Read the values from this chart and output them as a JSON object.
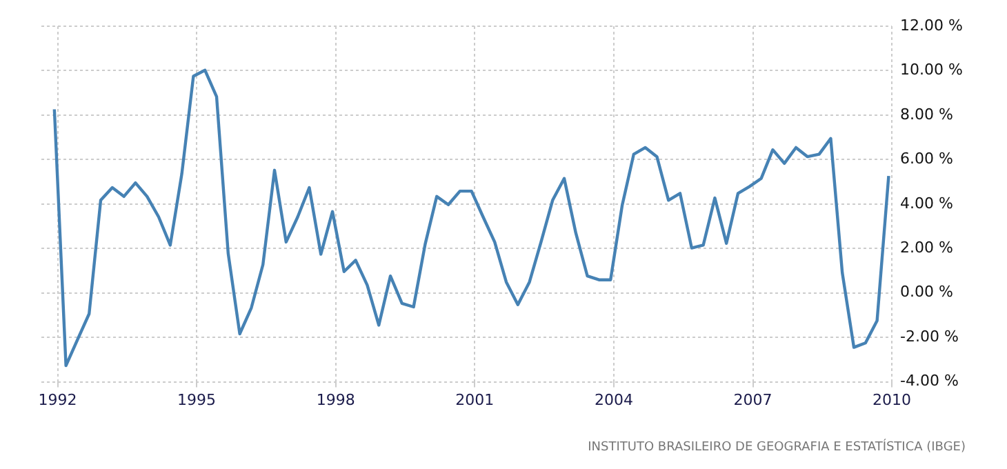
{
  "chart_data": {
    "type": "line",
    "x": [
      1991.93,
      1992.18,
      1992.43,
      1992.68,
      1992.93,
      1993.18,
      1993.43,
      1993.68,
      1993.93,
      1994.18,
      1994.43,
      1994.68,
      1994.93,
      1995.18,
      1995.43,
      1995.68,
      1995.93,
      1996.18,
      1996.43,
      1996.68,
      1996.93,
      1997.18,
      1997.43,
      1997.68,
      1997.93,
      1998.18,
      1998.43,
      1998.68,
      1998.93,
      1999.18,
      1999.43,
      1999.68,
      1999.93,
      2000.18,
      2000.43,
      2000.68,
      2000.93,
      2001.18,
      2001.43,
      2001.68,
      2001.93,
      2002.18,
      2002.43,
      2002.68,
      2002.93,
      2003.18,
      2003.43,
      2003.68,
      2003.93,
      2004.18,
      2004.43,
      2004.68,
      2004.93,
      2005.18,
      2005.43,
      2005.68,
      2005.93,
      2006.18,
      2006.43,
      2006.68,
      2006.93,
      2007.18,
      2007.43,
      2007.68,
      2007.93,
      2008.18,
      2008.43,
      2008.68,
      2008.93,
      2009.18,
      2009.43,
      2009.68,
      2009.93
    ],
    "series": [
      {
        "color": "#4682b4",
        "values": [
          8.26,
          -3.27,
          -2.1,
          -0.94,
          4.17,
          4.74,
          4.34,
          4.95,
          4.34,
          3.42,
          2.15,
          5.36,
          9.75,
          10.02,
          8.83,
          1.78,
          -1.84,
          -0.67,
          1.27,
          5.52,
          2.29,
          3.42,
          4.74,
          1.74,
          3.66,
          0.96,
          1.47,
          0.35,
          -1.45,
          0.76,
          -0.47,
          -0.63,
          2.19,
          4.34,
          3.97,
          4.58,
          4.58,
          3.42,
          2.29,
          0.49,
          -0.53,
          0.49,
          2.29,
          4.17,
          5.15,
          2.7,
          0.76,
          0.59,
          0.59,
          3.93,
          6.24,
          6.54,
          6.13,
          4.17,
          4.48,
          2.02,
          2.15,
          4.27,
          2.23,
          4.48,
          4.79,
          5.15,
          6.44,
          5.83,
          6.54,
          6.13,
          6.24,
          6.95,
          0.9,
          -2.45,
          -2.25,
          -1.25,
          5.26
        ]
      }
    ],
    "xlim": [
      1991.65,
      2010
    ],
    "xticks": [
      1992,
      1995,
      1998,
      2001,
      2004,
      2007,
      2010
    ],
    "ylim": [
      -4,
      12
    ],
    "yticks": [
      {
        "value": -4,
        "label": "-4.00 %"
      },
      {
        "value": -2,
        "label": "-2.00 %"
      },
      {
        "value": 0,
        "label": "0.00 %"
      },
      {
        "value": 2,
        "label": "2.00 %"
      },
      {
        "value": 4,
        "label": "4.00 %"
      },
      {
        "value": 6,
        "label": "6.00 %"
      },
      {
        "value": 8,
        "label": "8.00 %"
      },
      {
        "value": 10,
        "label": "10.00 %"
      },
      {
        "value": 12,
        "label": "12.00 %"
      }
    ],
    "grid": true,
    "marker": "none",
    "line_style": "solid",
    "annotations": [
      "INSTITUTO BRASILEIRO DE GEOGRAFIA E ESTATÍSTICA (IBGE)"
    ]
  }
}
